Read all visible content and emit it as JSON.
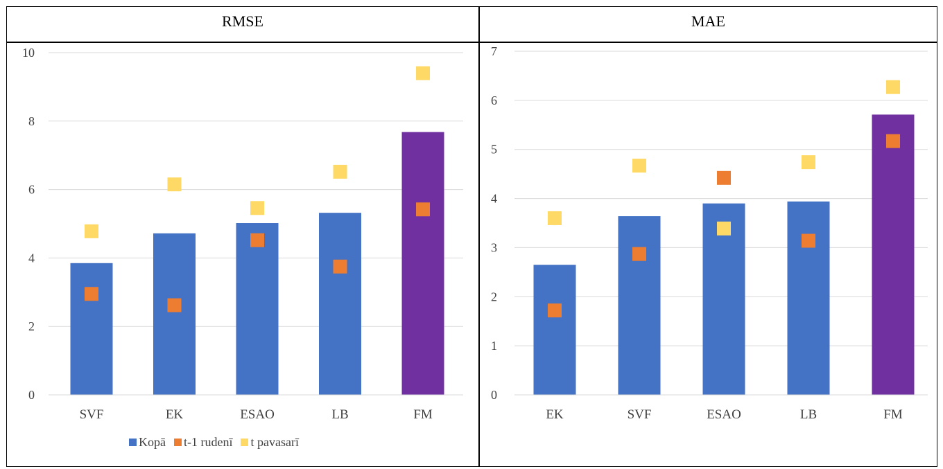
{
  "table": {
    "left_header": "RMSE",
    "right_header": "MAE"
  },
  "legend": {
    "items": [
      {
        "label": "Kopā",
        "color": "#4472C4"
      },
      {
        "label": "t-1 rudenī",
        "color": "#ED7D31"
      },
      {
        "label": "t pavasarī",
        "color": "#FFD966"
      }
    ]
  },
  "chart_data": [
    {
      "type": "bar",
      "title": "RMSE",
      "categories": [
        "SVF",
        "EK",
        "ESAO",
        "LB",
        "FM"
      ],
      "bar_colors": [
        "#4472C4",
        "#4472C4",
        "#4472C4",
        "#4472C4",
        "#7030A0"
      ],
      "ylim": [
        0,
        10
      ],
      "yticks": [
        0,
        2,
        4,
        6,
        8,
        10
      ],
      "grid": true,
      "legend_position": "bottom",
      "series": [
        {
          "name": "Kopā",
          "type": "bar",
          "color": "#4472C4",
          "values": [
            3.85,
            4.72,
            5.02,
            5.32,
            7.68
          ]
        },
        {
          "name": "t-1 rudenī",
          "type": "marker",
          "color": "#ED7D31",
          "values": [
            2.95,
            2.62,
            4.52,
            3.75,
            5.42
          ]
        },
        {
          "name": "t pavasarī",
          "type": "marker",
          "color": "#FFD966",
          "values": [
            4.78,
            6.15,
            5.46,
            6.52,
            9.4
          ]
        }
      ]
    },
    {
      "type": "bar",
      "title": "MAE",
      "categories": [
        "EK",
        "SVF",
        "ESAO",
        "LB",
        "FM"
      ],
      "bar_colors": [
        "#4472C4",
        "#4472C4",
        "#4472C4",
        "#4472C4",
        "#7030A0"
      ],
      "ylim": [
        0,
        7
      ],
      "yticks": [
        0,
        1,
        2,
        3,
        4,
        5,
        6,
        7
      ],
      "grid": true,
      "legend_position": "none",
      "series": [
        {
          "name": "Kopā",
          "type": "bar",
          "color": "#4472C4",
          "values": [
            2.65,
            3.64,
            3.9,
            3.94,
            5.71
          ]
        },
        {
          "name": "t-1 rudenī",
          "type": "marker",
          "color": "#ED7D31",
          "values": [
            1.72,
            2.87,
            4.42,
            3.14,
            5.17
          ]
        },
        {
          "name": "t pavasarī",
          "type": "marker",
          "color": "#FFD966",
          "values": [
            3.6,
            4.67,
            3.39,
            4.74,
            6.27
          ]
        }
      ]
    }
  ]
}
